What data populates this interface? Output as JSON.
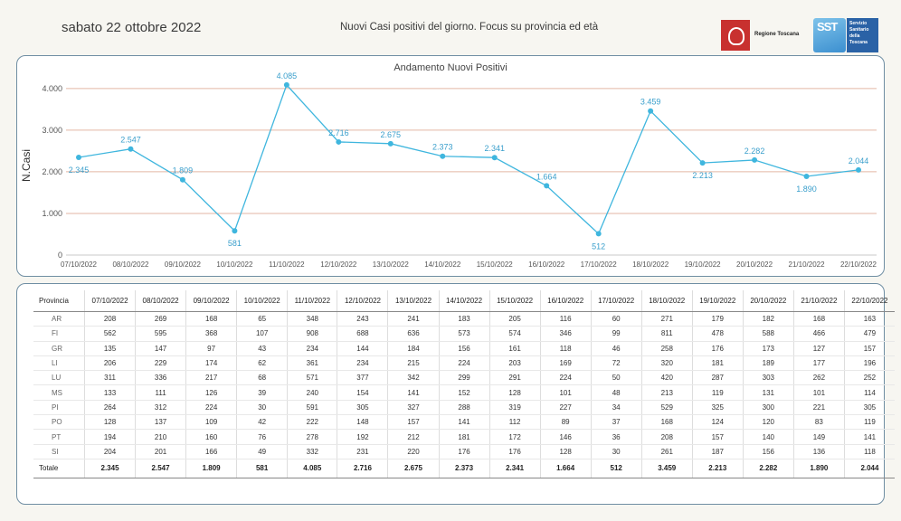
{
  "header": {
    "date": "sabato 22 ottobre 2022",
    "subtitle": "Nuovi Casi positivi del giorno. Focus su provincia ed età",
    "logo_regione": "Regione Toscana",
    "logo_sst_mark": "SST",
    "logo_sst_text": "Servizio Sanitario della Toscana"
  },
  "chart_data": {
    "type": "line",
    "title": "Andamento Nuovi Positivi",
    "xlabel": "",
    "ylabel": "N.Casi",
    "categories": [
      "07/10/2022",
      "08/10/2022",
      "09/10/2022",
      "10/10/2022",
      "11/10/2022",
      "12/10/2022",
      "13/10/2022",
      "14/10/2022",
      "15/10/2022",
      "16/10/2022",
      "17/10/2022",
      "18/10/2022",
      "19/10/2022",
      "20/10/2022",
      "21/10/2022",
      "22/10/2022"
    ],
    "values": [
      2345,
      2547,
      1809,
      581,
      4085,
      2716,
      2675,
      2373,
      2341,
      1664,
      512,
      3459,
      2213,
      2282,
      1890,
      2044
    ],
    "value_labels": [
      "2.345",
      "2.547",
      "1.809",
      "581",
      "4.085",
      "2.716",
      "2.675",
      "2.373",
      "2.341",
      "1.664",
      "512",
      "3.459",
      "2.213",
      "2.282",
      "1.890",
      "2.044"
    ],
    "ylim": [
      0,
      4300
    ],
    "yticks": [
      0,
      1000,
      2000,
      3000,
      4000
    ],
    "ytick_labels": [
      "0",
      "1.000",
      "2.000",
      "3.000",
      "4.000"
    ],
    "grid": true,
    "colors": {
      "line": "#3fb6de",
      "grid": "#e3b6a4",
      "label": "#3a9fcc"
    }
  },
  "table": {
    "headers": [
      "Provincia",
      "07/10/2022",
      "08/10/2022",
      "09/10/2022",
      "10/10/2022",
      "11/10/2022",
      "12/10/2022",
      "13/10/2022",
      "14/10/2022",
      "15/10/2022",
      "16/10/2022",
      "17/10/2022",
      "18/10/2022",
      "19/10/2022",
      "20/10/2022",
      "21/10/2022",
      "22/10/2022"
    ],
    "rows": [
      [
        "AR",
        "208",
        "269",
        "168",
        "65",
        "348",
        "243",
        "241",
        "183",
        "205",
        "116",
        "60",
        "271",
        "179",
        "182",
        "168",
        "163"
      ],
      [
        "FI",
        "562",
        "595",
        "368",
        "107",
        "908",
        "688",
        "636",
        "573",
        "574",
        "346",
        "99",
        "811",
        "478",
        "588",
        "466",
        "479"
      ],
      [
        "GR",
        "135",
        "147",
        "97",
        "43",
        "234",
        "144",
        "184",
        "156",
        "161",
        "118",
        "46",
        "258",
        "176",
        "173",
        "127",
        "157"
      ],
      [
        "LI",
        "206",
        "229",
        "174",
        "62",
        "361",
        "234",
        "215",
        "224",
        "203",
        "169",
        "72",
        "320",
        "181",
        "189",
        "177",
        "196"
      ],
      [
        "LU",
        "311",
        "336",
        "217",
        "68",
        "571",
        "377",
        "342",
        "299",
        "291",
        "224",
        "50",
        "420",
        "287",
        "303",
        "262",
        "252"
      ],
      [
        "MS",
        "133",
        "111",
        "126",
        "39",
        "240",
        "154",
        "141",
        "152",
        "128",
        "101",
        "48",
        "213",
        "119",
        "131",
        "101",
        "114"
      ],
      [
        "PI",
        "264",
        "312",
        "224",
        "30",
        "591",
        "305",
        "327",
        "288",
        "319",
        "227",
        "34",
        "529",
        "325",
        "300",
        "221",
        "305"
      ],
      [
        "PO",
        "128",
        "137",
        "109",
        "42",
        "222",
        "148",
        "157",
        "141",
        "112",
        "89",
        "37",
        "168",
        "124",
        "120",
        "83",
        "119"
      ],
      [
        "PT",
        "194",
        "210",
        "160",
        "76",
        "278",
        "192",
        "212",
        "181",
        "172",
        "146",
        "36",
        "208",
        "157",
        "140",
        "149",
        "141"
      ],
      [
        "SI",
        "204",
        "201",
        "166",
        "49",
        "332",
        "231",
        "220",
        "176",
        "176",
        "128",
        "30",
        "261",
        "187",
        "156",
        "136",
        "118"
      ]
    ],
    "total": [
      "Totale",
      "2.345",
      "2.547",
      "1.809",
      "581",
      "4.085",
      "2.716",
      "2.675",
      "2.373",
      "2.341",
      "1.664",
      "512",
      "3.459",
      "2.213",
      "2.282",
      "1.890",
      "2.044"
    ]
  }
}
